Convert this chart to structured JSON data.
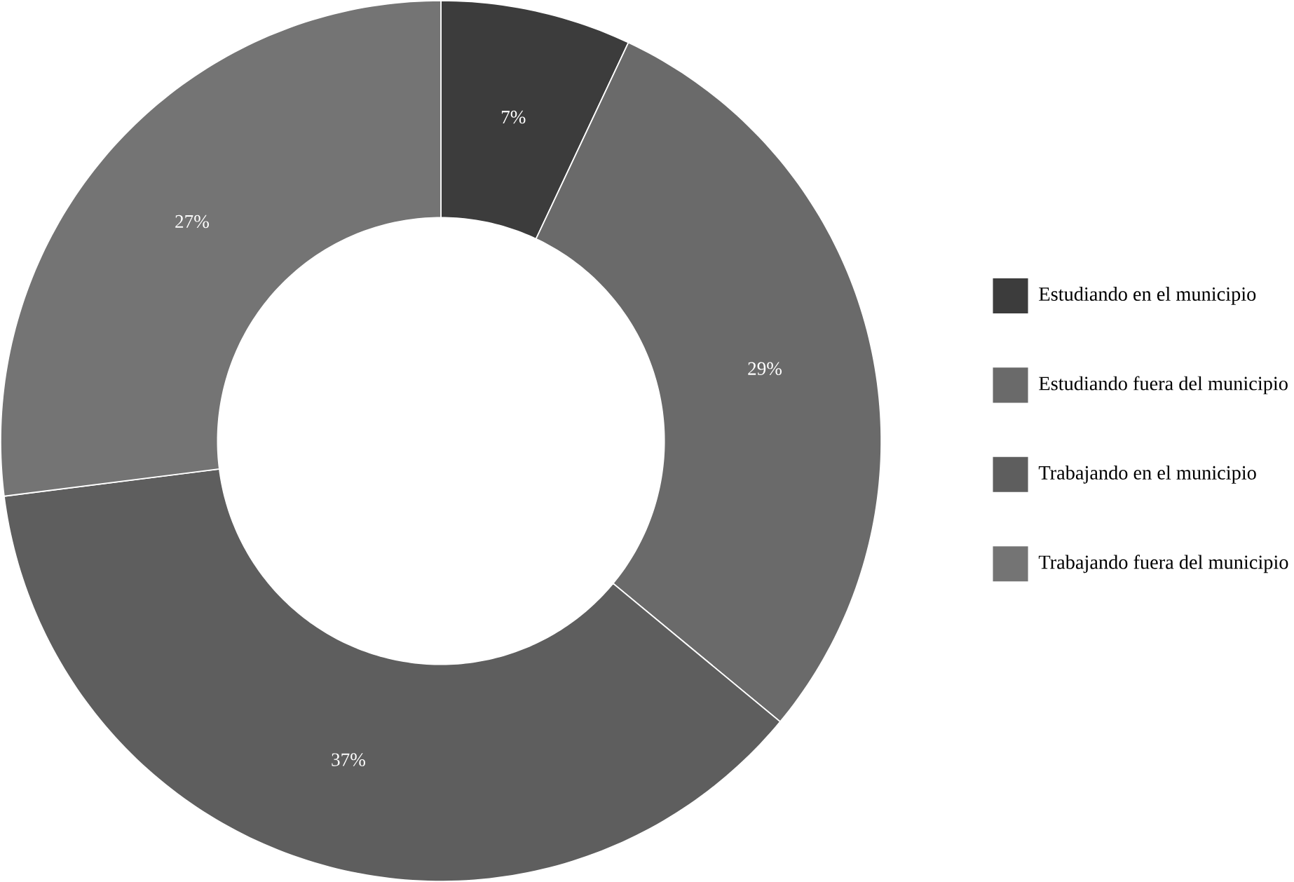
{
  "chart_data": {
    "type": "donut",
    "categories": [
      "Estudiando en el municipio",
      "Estudiando fuera del municipio",
      "Trabajando en el municipio",
      "Trabajando fuera del municipio"
    ],
    "values": [
      7,
      29,
      37,
      27
    ],
    "value_labels": [
      "7%",
      "29%",
      "37%",
      "27%"
    ],
    "colors": [
      "#3c3c3c",
      "#6a6a6a",
      "#5e5e5e",
      "#747474"
    ],
    "legend": "right"
  }
}
